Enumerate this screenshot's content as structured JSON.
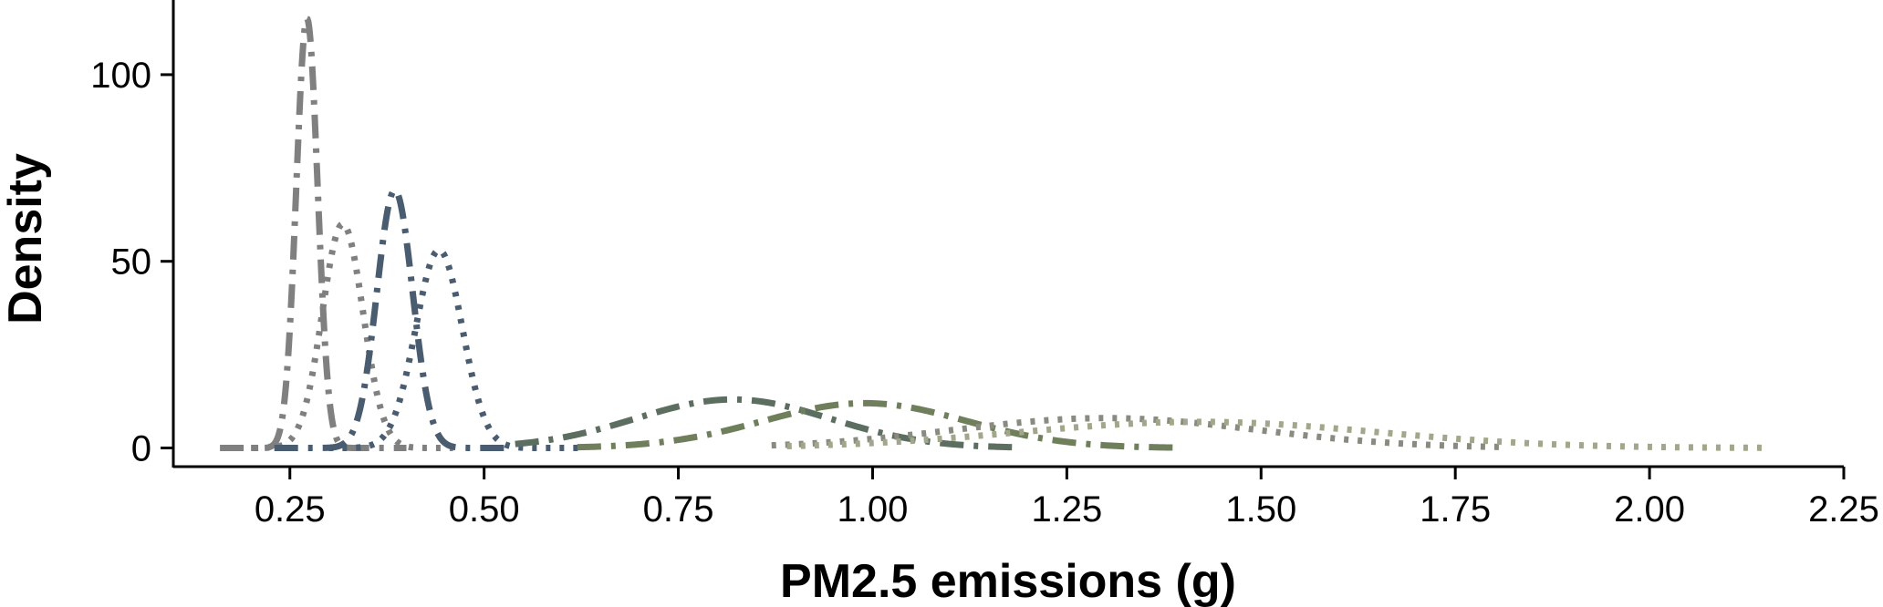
{
  "chart_data": {
    "type": "line",
    "title": "",
    "xlabel": "PM2.5 emissions (g)",
    "ylabel": "Density",
    "xlim": [
      0.1,
      2.25
    ],
    "ylim": [
      -5,
      120
    ],
    "xticks": [
      0.25,
      0.5,
      0.75,
      1.0,
      1.25,
      1.5,
      1.75,
      2.0,
      2.25
    ],
    "xtick_labels": [
      "0.25",
      "0.50",
      "0.75",
      "1.00",
      "1.25",
      "1.50",
      "1.75",
      "2.00",
      "2.25"
    ],
    "yticks": [
      0,
      50,
      100
    ],
    "ytick_labels": [
      "0",
      "50",
      "100"
    ],
    "grid": false,
    "legend": "none",
    "series": [
      {
        "color": "#808080",
        "dash": "dashdot",
        "mean": 0.272,
        "sd": 0.0138,
        "peak": 115,
        "range": [
          0.16,
          0.4
        ]
      },
      {
        "color": "#808080",
        "dash": "dotted",
        "mean": 0.318,
        "sd": 0.0262,
        "peak": 60,
        "range": [
          0.2,
          0.46
        ]
      },
      {
        "color": "#4a5c70",
        "dash": "dashdot",
        "mean": 0.385,
        "sd": 0.023,
        "peak": 69,
        "range": [
          0.23,
          0.53
        ]
      },
      {
        "color": "#4a5c70",
        "dash": "dotted",
        "mean": 0.442,
        "sd": 0.03,
        "peak": 53,
        "range": [
          0.3,
          0.63
        ]
      },
      {
        "color": "#5c6e60",
        "dash": "dashdot",
        "mean": 0.82,
        "sd": 0.125,
        "peak": 13,
        "range": [
          0.54,
          1.18
        ]
      },
      {
        "color": "#6f7f5c",
        "dash": "dashdot",
        "mean": 0.99,
        "sd": 0.13,
        "peak": 12,
        "range": [
          0.62,
          1.39
        ]
      },
      {
        "color": "#8a8a80",
        "dash": "dotted",
        "mean": 1.3,
        "sd": 0.195,
        "peak": 8,
        "range": [
          0.87,
          1.81
        ]
      },
      {
        "color": "#a2a68a",
        "dash": "dotted",
        "mean": 1.42,
        "sd": 0.23,
        "peak": 7,
        "range": [
          0.89,
          2.15
        ]
      }
    ]
  }
}
